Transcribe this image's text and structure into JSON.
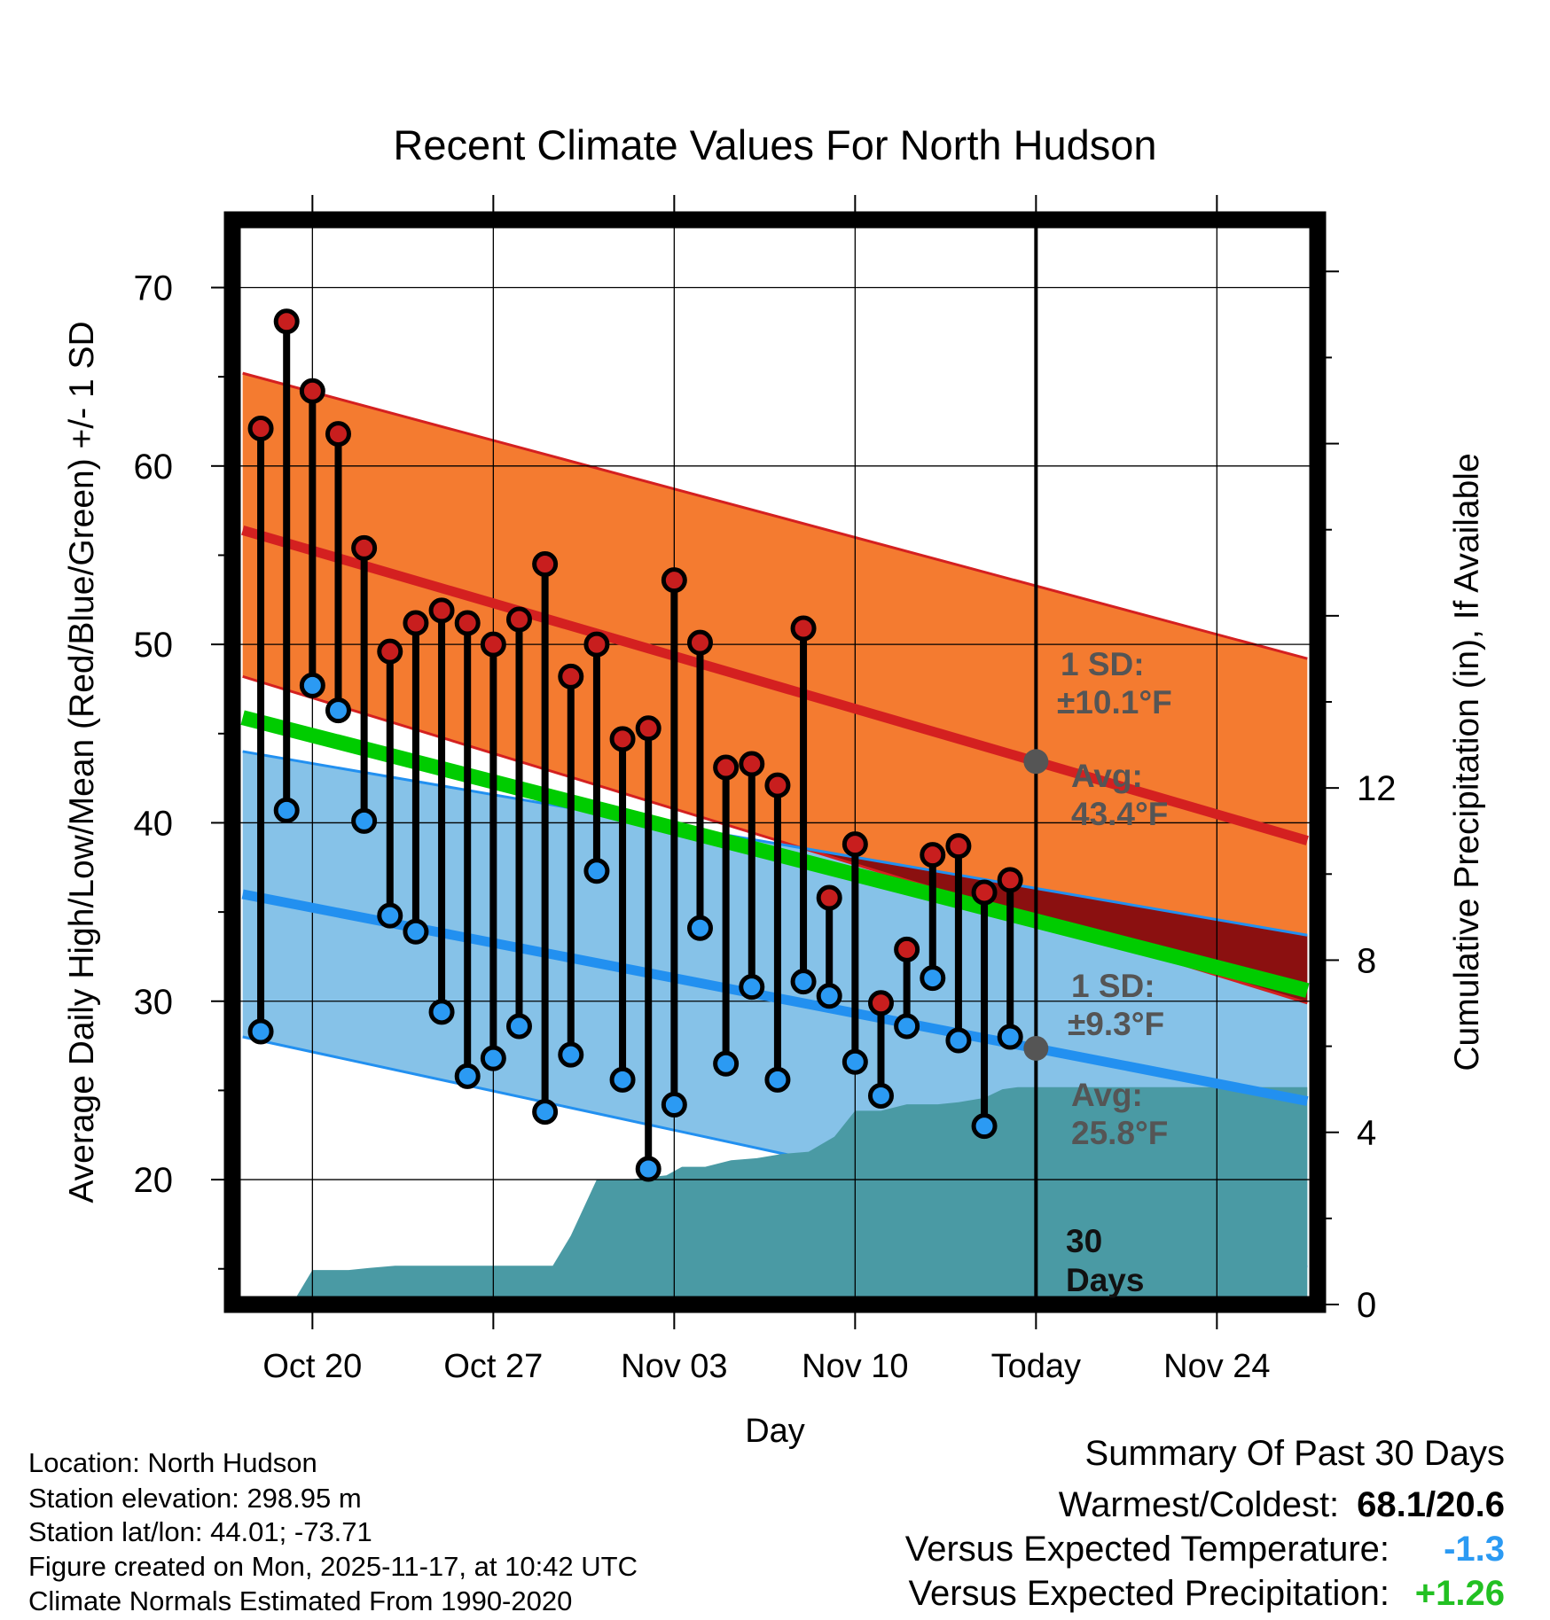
{
  "chart_data": {
    "type": "line",
    "title": "Recent Climate Values For North Hudson",
    "xlabel": "Day",
    "ylabel_left": "Average Daily High/Low/Mean (Red/Blue/Green) +/- 1 SD",
    "ylabel_right": "Cumulative Precipitation (in), If Available",
    "xlim": [
      -3.1,
      38.9
    ],
    "ylim_left": [
      13.0,
      73.8
    ],
    "ylim_right": [
      0,
      25.2
    ],
    "x_ticks": [
      {
        "x": 0,
        "label": "Oct 20"
      },
      {
        "x": 7,
        "label": "Oct 27"
      },
      {
        "x": 14,
        "label": "Nov 03"
      },
      {
        "x": 21,
        "label": "Nov 10"
      },
      {
        "x": 28,
        "label": "Today"
      },
      {
        "x": 35,
        "label": "Nov 24"
      }
    ],
    "y_ticks_left": [
      20,
      30,
      40,
      50,
      60,
      70
    ],
    "y_ticks_right": [
      0,
      4,
      8,
      12
    ],
    "normal_high": {
      "x": [
        -2.7,
        38.5
      ],
      "avg": [
        56.4,
        39.0
      ],
      "sd_range": [
        [
          48.2,
          65.2
        ],
        [
          29.9,
          49.2
        ]
      ]
    },
    "normal_low": {
      "x": [
        -2.7,
        38.5
      ],
      "avg": [
        36.0,
        24.4
      ],
      "sd_range": [
        [
          28.0,
          44.0
        ],
        [
          15.1,
          33.7
        ]
      ]
    },
    "normal_mean": {
      "x": [
        -2.7,
        38.5
      ],
      "values": [
        45.9,
        30.6
      ]
    },
    "daily": {
      "x": [
        -2,
        -1,
        0,
        1,
        2,
        3,
        4,
        5,
        6,
        7,
        8,
        9,
        10,
        11,
        12,
        13,
        14,
        15,
        16,
        17,
        18,
        19,
        20,
        21,
        22,
        23,
        24,
        25,
        26,
        27
      ],
      "high": [
        62.1,
        68.1,
        64.2,
        61.8,
        55.4,
        49.6,
        51.2,
        51.9,
        51.2,
        50.0,
        51.4,
        54.5,
        48.2,
        50.0,
        44.7,
        45.3,
        53.6,
        50.1,
        43.1,
        43.3,
        42.1,
        50.9,
        35.8,
        38.8,
        29.9,
        32.9,
        38.2,
        38.7,
        36.1,
        36.8
      ],
      "low": [
        28.3,
        40.7,
        47.7,
        46.3,
        40.1,
        34.8,
        33.9,
        29.4,
        25.8,
        26.8,
        28.6,
        23.8,
        27.0,
        37.3,
        25.6,
        20.6,
        24.2,
        34.1,
        26.5,
        30.8,
        25.6,
        31.1,
        30.3,
        26.6,
        24.7,
        28.6,
        31.3,
        27.8,
        23.0,
        28.0
      ]
    },
    "precip_cumulative": {
      "x": [
        -2.7,
        -0.8,
        0,
        1.4,
        2.2,
        3.2,
        9.3,
        10.0,
        11.0,
        12.2,
        13.7,
        14.3,
        15.2,
        16.2,
        17.2,
        18.2,
        19.2,
        20.2,
        21.0,
        22.0,
        23.0,
        24.2,
        25.0,
        26.0,
        26.7,
        27.3,
        28.0,
        38.5
      ],
      "values": [
        0,
        0,
        0.8,
        0.8,
        0.85,
        0.9,
        0.9,
        1.6,
        2.9,
        2.9,
        3.0,
        3.2,
        3.2,
        3.35,
        3.4,
        3.5,
        3.55,
        3.9,
        4.5,
        4.5,
        4.65,
        4.65,
        4.7,
        4.8,
        5.0,
        5.05,
        5.05,
        5.05
      ]
    },
    "today_x": 28,
    "annotations": {
      "high_sd": "1 SD:",
      "high_sd_value": "±10.1°F",
      "high_avg": "Avg:",
      "high_avg_value": "43.4°F",
      "low_sd": "1 SD:",
      "low_sd_value": "±9.3°F",
      "low_avg": "Avg:",
      "low_avg_value": "25.8°F",
      "days_number": "30",
      "days_label": "Days"
    },
    "colors": {
      "high_band": "#f47b30",
      "high_line": "#d42020",
      "low_band": "#86c2e8",
      "low_line": "#2290f0",
      "mean_line": "#00cc00",
      "overlap": "#8b1010",
      "precip": "#4a9aa4",
      "high_dot": "#c81e1e",
      "low_dot": "#2b9af3",
      "annotation": "#555555"
    }
  },
  "station_info": [
    "Location: North Hudson",
    "Station elevation: 298.95 m",
    "Station lat/lon: 44.01; -73.71",
    "Figure created on Mon, 2025-11-17, at 10:42 UTC",
    "Climate Normals Estimated From 1990-2020"
  ],
  "summary": {
    "title": "Summary Of Past 30 Days",
    "warmest_coldest_label": "Warmest/Coldest:",
    "warmest_coldest_value": "68.1/20.6",
    "temp_label": "Versus Expected Temperature:",
    "temp_value": "-1.3",
    "temp_color": "#2b9af3",
    "precip_label": "Versus Expected Precipitation:",
    "precip_value": "+1.26",
    "precip_color": "#22c022"
  }
}
